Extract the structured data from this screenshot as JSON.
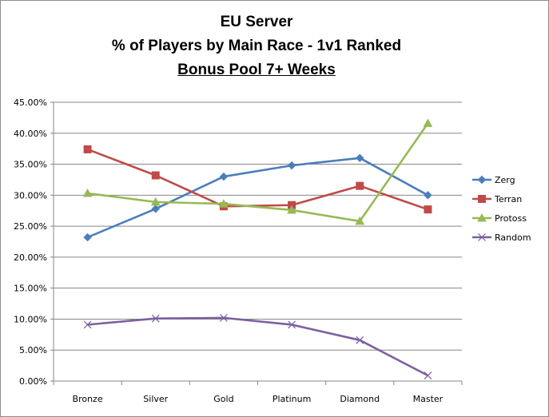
{
  "chart_data": {
    "type": "line",
    "title": "EU Server",
    "subtitle": "% of Players by Main Race - 1v1 Ranked",
    "subtitle2": "Bonus Pool 7+ Weeks",
    "categories": [
      "Bronze",
      "Silver",
      "Gold",
      "Platinum",
      "Diamond",
      "Master"
    ],
    "yticks": [
      "0.00%",
      "5.00%",
      "10.00%",
      "15.00%",
      "20.00%",
      "25.00%",
      "30.00%",
      "35.00%",
      "40.00%",
      "45.00%"
    ],
    "ylim": [
      0,
      45
    ],
    "grid": true,
    "legend_position": "right",
    "series": [
      {
        "name": "Zerg",
        "color": "#4a7ebb",
        "marker": "diamond",
        "values": [
          23.2,
          27.8,
          33.0,
          34.8,
          36.0,
          30.0
        ]
      },
      {
        "name": "Terran",
        "color": "#be4b48",
        "marker": "square",
        "values": [
          37.4,
          33.2,
          28.2,
          28.4,
          31.5,
          27.7
        ]
      },
      {
        "name": "Protoss",
        "color": "#98b954",
        "marker": "triangle",
        "values": [
          30.3,
          28.9,
          28.6,
          27.6,
          25.8,
          41.6
        ]
      },
      {
        "name": "Random",
        "color": "#7d60a0",
        "marker": "x",
        "values": [
          9.1,
          10.1,
          10.2,
          9.1,
          6.6,
          0.9
        ]
      }
    ]
  }
}
